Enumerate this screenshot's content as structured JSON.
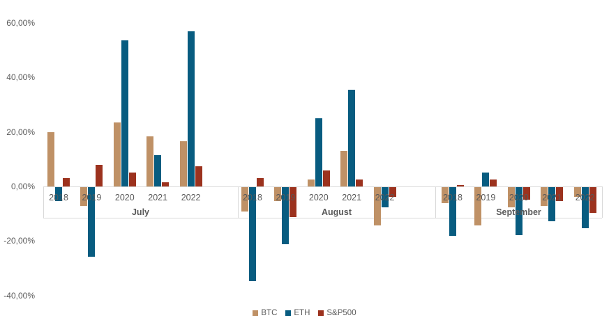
{
  "chart_data": {
    "type": "bar",
    "y_axis": {
      "min": -40,
      "max": 60,
      "tick_format": "percent-comma-decimal",
      "ticks": [
        {
          "value": 60,
          "label": "60,00%"
        },
        {
          "value": 40,
          "label": "40,00%"
        },
        {
          "value": 20,
          "label": "20,00%"
        },
        {
          "value": 0,
          "label": "0,00%"
        },
        {
          "value": -20,
          "label": "-20,00%"
        },
        {
          "value": -40,
          "label": "-40,00%"
        }
      ]
    },
    "x_axis": {
      "groups": [
        "July",
        "August",
        "September"
      ],
      "years": [
        "2018",
        "2019",
        "2020",
        "2021",
        "2022"
      ]
    },
    "series": [
      {
        "name": "BTC",
        "color": "#BF9166",
        "values": {
          "July": [
            20,
            -7,
            23.5,
            18.5,
            16.5
          ],
          "August": [
            -9,
            -5,
            2.5,
            13,
            -14
          ],
          "September": [
            -6,
            -14,
            -7.5,
            -7,
            -3.5
          ]
        }
      },
      {
        "name": "ETH",
        "color": "#085C80",
        "values": {
          "July": [
            -5,
            -25.5,
            53.5,
            11.5,
            57
          ],
          "August": [
            -34.5,
            -21,
            25,
            35.5,
            -7.5
          ],
          "September": [
            -18,
            5,
            -17.5,
            -12.5,
            -15
          ]
        }
      },
      {
        "name": "S&P500",
        "color": "#9C321E",
        "values": {
          "July": [
            3,
            8,
            5,
            1.5,
            7.5
          ],
          "August": [
            3,
            -11,
            6,
            2.5,
            -3.5
          ],
          "September": [
            0.5,
            2.5,
            -4.5,
            -5,
            -9.5
          ]
        }
      }
    ],
    "legend": {
      "position": "bottom",
      "items": [
        "BTC",
        "ETH",
        "S&P500"
      ]
    },
    "gridlines": false
  },
  "colors": {
    "axis_line": "#D9D9D9",
    "text": "#595959",
    "background": "#FFFFFF"
  }
}
